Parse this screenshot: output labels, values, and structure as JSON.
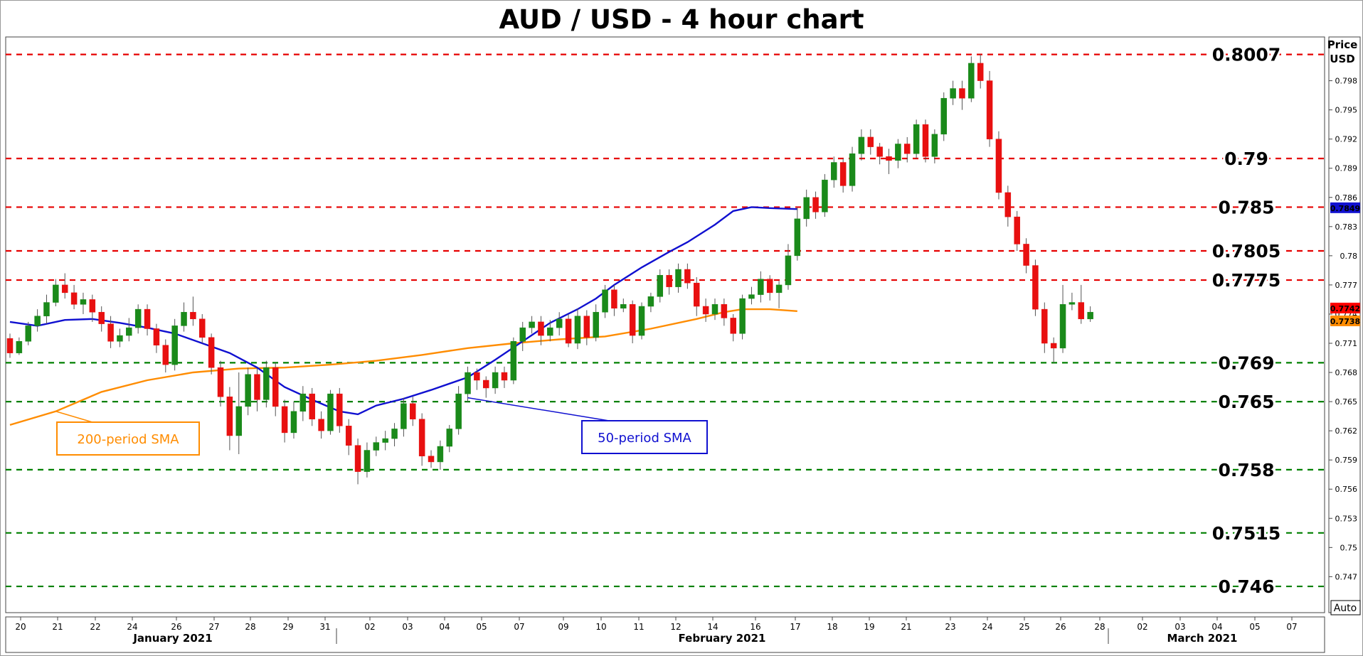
{
  "chart_data": {
    "type": "candlestick",
    "title": "AUD / USD - 4 hour chart",
    "y_axis_title": "Price\nUSD",
    "ylim": [
      0.7433,
      0.8025
    ],
    "y_ticks": [
      "0.798",
      "0.795",
      "0.792",
      "0.789",
      "0.786",
      "0.783",
      "0.78",
      "0.777",
      "0.774",
      "0.771",
      "0.768",
      "0.765",
      "0.762",
      "0.759",
      "0.756",
      "0.753",
      "0.75",
      "0.747"
    ],
    "x_tick_labels": [
      "20",
      "21",
      "22",
      "24",
      "26",
      "27",
      "28",
      "29",
      "31",
      "02",
      "03",
      "04",
      "05",
      "07",
      "09",
      "10",
      "11",
      "12",
      "14",
      "16",
      "17",
      "18",
      "19",
      "21",
      "23",
      "24",
      "25",
      "26",
      "28",
      "02",
      "03",
      "04",
      "05",
      "07"
    ],
    "month_labels": [
      "January 2021",
      "February 2021",
      "March 2021"
    ],
    "auto_label": "Auto",
    "horizontal_levels": [
      {
        "label": "0.8007",
        "value": 0.8007,
        "color": "#e60000"
      },
      {
        "label": "0.79",
        "value": 0.79,
        "color": "#e60000"
      },
      {
        "label": "0.785",
        "value": 0.785,
        "color": "#e60000"
      },
      {
        "label": "0.7805",
        "value": 0.7805,
        "color": "#e60000"
      },
      {
        "label": "0.7775",
        "value": 0.7775,
        "color": "#e60000"
      },
      {
        "label": "0.769",
        "value": 0.769,
        "color": "#008000"
      },
      {
        "label": "0.765",
        "value": 0.765,
        "color": "#008000"
      },
      {
        "label": "0.758",
        "value": 0.758,
        "color": "#008000"
      },
      {
        "label": "0.7515",
        "value": 0.7515,
        "color": "#008000"
      },
      {
        "label": "0.746",
        "value": 0.746,
        "color": "#008000"
      }
    ],
    "sma50": {
      "name": "50-period SMA",
      "color": "#1010d0",
      "points": [
        [
          0,
          0.7732
        ],
        [
          3,
          0.7728
        ],
        [
          6,
          0.7734
        ],
        [
          9,
          0.7735
        ],
        [
          12,
          0.7731
        ],
        [
          15,
          0.7726
        ],
        [
          18,
          0.772
        ],
        [
          21,
          0.771
        ],
        [
          24,
          0.77
        ],
        [
          27,
          0.7685
        ],
        [
          30,
          0.7665
        ],
        [
          33,
          0.7652
        ],
        [
          36,
          0.764
        ],
        [
          38,
          0.7637
        ],
        [
          40,
          0.7646
        ],
        [
          43,
          0.7653
        ],
        [
          46,
          0.7662
        ],
        [
          50,
          0.7675
        ],
        [
          53,
          0.7693
        ],
        [
          56,
          0.7712
        ],
        [
          59,
          0.7731
        ],
        [
          62,
          0.7745
        ],
        [
          64,
          0.7756
        ],
        [
          66,
          0.777
        ],
        [
          69,
          0.7788
        ],
        [
          72,
          0.7804
        ],
        [
          74,
          0.7814
        ],
        [
          77,
          0.7832
        ],
        [
          79,
          0.7846
        ],
        [
          81,
          0.785
        ],
        [
          83,
          0.7849
        ],
        [
          86,
          0.7848
        ]
      ]
    },
    "sma200": {
      "name": "200-period SMA",
      "color": "#ff8c00",
      "points": [
        [
          0,
          0.7626
        ],
        [
          5,
          0.764
        ],
        [
          10,
          0.766
        ],
        [
          15,
          0.7672
        ],
        [
          20,
          0.768
        ],
        [
          25,
          0.7684
        ],
        [
          30,
          0.7685
        ],
        [
          35,
          0.7688
        ],
        [
          40,
          0.7692
        ],
        [
          45,
          0.7698
        ],
        [
          50,
          0.7705
        ],
        [
          55,
          0.771
        ],
        [
          60,
          0.7714
        ],
        [
          65,
          0.7717
        ],
        [
          70,
          0.7725
        ],
        [
          75,
          0.7735
        ],
        [
          78,
          0.7742
        ],
        [
          80,
          0.7745
        ],
        [
          83,
          0.7745
        ],
        [
          86,
          0.7743
        ]
      ]
    },
    "current_prices": [
      {
        "label": "0.7742",
        "color": "#ff0000"
      },
      {
        "label": "0.7738",
        "color": "#ff8c00"
      },
      {
        "label": "0.7849",
        "color": "#1010d0"
      }
    ],
    "candles": [
      [
        0.7715,
        0.77,
        0.772,
        0.7695
      ],
      [
        0.77,
        0.7712,
        0.7716,
        0.7698
      ],
      [
        0.7712,
        0.7728,
        0.7732,
        0.7708
      ],
      [
        0.7728,
        0.7738,
        0.7745,
        0.7722
      ],
      [
        0.7738,
        0.7752,
        0.776,
        0.773
      ],
      [
        0.7752,
        0.777,
        0.7776,
        0.7748
      ],
      [
        0.777,
        0.7762,
        0.7782,
        0.7756
      ],
      [
        0.7762,
        0.775,
        0.777,
        0.7745
      ],
      [
        0.775,
        0.7755,
        0.7762,
        0.774
      ],
      [
        0.7755,
        0.7742,
        0.776,
        0.7732
      ],
      [
        0.7742,
        0.773,
        0.7748,
        0.7722
      ],
      [
        0.773,
        0.7712,
        0.7738,
        0.7705
      ],
      [
        0.7712,
        0.7718,
        0.7725,
        0.7706
      ],
      [
        0.7718,
        0.7726,
        0.7736,
        0.7712
      ],
      [
        0.7726,
        0.7745,
        0.775,
        0.772
      ],
      [
        0.7745,
        0.7725,
        0.775,
        0.7718
      ],
      [
        0.7725,
        0.7708,
        0.773,
        0.77
      ],
      [
        0.7708,
        0.7688,
        0.7714,
        0.768
      ],
      [
        0.7688,
        0.7728,
        0.7735,
        0.7682
      ],
      [
        0.7728,
        0.7742,
        0.7752,
        0.7722
      ],
      [
        0.7742,
        0.7735,
        0.7758,
        0.7728
      ],
      [
        0.7735,
        0.7716,
        0.774,
        0.771
      ],
      [
        0.7716,
        0.7685,
        0.772,
        0.7678
      ],
      [
        0.7685,
        0.7655,
        0.7692,
        0.7645
      ],
      [
        0.7655,
        0.7615,
        0.7665,
        0.76
      ],
      [
        0.7615,
        0.7645,
        0.768,
        0.7596
      ],
      [
        0.7645,
        0.7678,
        0.7685,
        0.7636
      ],
      [
        0.7678,
        0.7652,
        0.7684,
        0.764
      ],
      [
        0.7652,
        0.7685,
        0.7692,
        0.7644
      ],
      [
        0.7685,
        0.7645,
        0.769,
        0.7635
      ],
      [
        0.7645,
        0.7618,
        0.7652,
        0.7608
      ],
      [
        0.7618,
        0.764,
        0.765,
        0.7612
      ],
      [
        0.764,
        0.7658,
        0.7666,
        0.763
      ],
      [
        0.7658,
        0.7632,
        0.7664,
        0.7625
      ],
      [
        0.7632,
        0.762,
        0.764,
        0.7612
      ],
      [
        0.762,
        0.7658,
        0.7662,
        0.7616
      ],
      [
        0.7658,
        0.7625,
        0.7664,
        0.7618
      ],
      [
        0.7625,
        0.7605,
        0.7632,
        0.7595
      ],
      [
        0.7605,
        0.7578,
        0.7612,
        0.7565
      ],
      [
        0.7578,
        0.76,
        0.7608,
        0.7572
      ],
      [
        0.76,
        0.7608,
        0.7614,
        0.7594
      ],
      [
        0.7608,
        0.7612,
        0.762,
        0.76
      ],
      [
        0.7612,
        0.7622,
        0.7628,
        0.7604
      ],
      [
        0.7622,
        0.7648,
        0.7654,
        0.7614
      ],
      [
        0.7648,
        0.7632,
        0.7655,
        0.7625
      ],
      [
        0.7632,
        0.7594,
        0.7638,
        0.7584
      ],
      [
        0.7594,
        0.7588,
        0.76,
        0.7582
      ],
      [
        0.7588,
        0.7604,
        0.761,
        0.758
      ],
      [
        0.7604,
        0.7622,
        0.7626,
        0.7598
      ],
      [
        0.7622,
        0.7658,
        0.7666,
        0.7616
      ],
      [
        0.7658,
        0.768,
        0.7686,
        0.765
      ],
      [
        0.768,
        0.7672,
        0.7684,
        0.7662
      ],
      [
        0.7672,
        0.7664,
        0.7676,
        0.7654
      ],
      [
        0.7664,
        0.768,
        0.7686,
        0.7658
      ],
      [
        0.768,
        0.7672,
        0.7686,
        0.7664
      ],
      [
        0.7672,
        0.7712,
        0.7716,
        0.7668
      ],
      [
        0.7712,
        0.7726,
        0.7732,
        0.7702
      ],
      [
        0.7726,
        0.7732,
        0.7738,
        0.772
      ],
      [
        0.7732,
        0.7718,
        0.7738,
        0.7708
      ],
      [
        0.7718,
        0.7726,
        0.7734,
        0.7712
      ],
      [
        0.7726,
        0.7735,
        0.7742,
        0.7718
      ],
      [
        0.7735,
        0.771,
        0.774,
        0.7706
      ],
      [
        0.771,
        0.7738,
        0.7746,
        0.7704
      ],
      [
        0.7738,
        0.7716,
        0.7744,
        0.7708
      ],
      [
        0.7716,
        0.7742,
        0.775,
        0.7712
      ],
      [
        0.7742,
        0.7765,
        0.777,
        0.7736
      ],
      [
        0.7765,
        0.7746,
        0.777,
        0.7738
      ],
      [
        0.7746,
        0.775,
        0.7756,
        0.7742
      ],
      [
        0.775,
        0.7718,
        0.7754,
        0.771
      ],
      [
        0.7718,
        0.7748,
        0.7752,
        0.7714
      ],
      [
        0.7748,
        0.7758,
        0.7762,
        0.7742
      ],
      [
        0.7758,
        0.778,
        0.7786,
        0.7752
      ],
      [
        0.778,
        0.7768,
        0.7786,
        0.776
      ],
      [
        0.7768,
        0.7786,
        0.7792,
        0.7762
      ],
      [
        0.7786,
        0.7772,
        0.7792,
        0.7766
      ],
      [
        0.7772,
        0.7748,
        0.7778,
        0.7738
      ],
      [
        0.7748,
        0.774,
        0.7756,
        0.7732
      ],
      [
        0.774,
        0.775,
        0.7756,
        0.7734
      ],
      [
        0.775,
        0.7736,
        0.7756,
        0.7728
      ],
      [
        0.7736,
        0.772,
        0.774,
        0.7712
      ],
      [
        0.772,
        0.7756,
        0.776,
        0.7714
      ],
      [
        0.7756,
        0.776,
        0.7768,
        0.775
      ],
      [
        0.776,
        0.7776,
        0.7784,
        0.7752
      ],
      [
        0.7776,
        0.7762,
        0.778,
        0.7754
      ],
      [
        0.7762,
        0.777,
        0.7774,
        0.7746
      ],
      [
        0.777,
        0.78,
        0.7812,
        0.7765
      ],
      [
        0.78,
        0.7838,
        0.785,
        0.7795
      ],
      [
        0.7838,
        0.786,
        0.7868,
        0.783
      ],
      [
        0.786,
        0.7845,
        0.7866,
        0.7838
      ],
      [
        0.7845,
        0.7878,
        0.7884,
        0.784
      ],
      [
        0.7878,
        0.7896,
        0.7902,
        0.787
      ],
      [
        0.7896,
        0.7872,
        0.79,
        0.7865
      ],
      [
        0.7872,
        0.7905,
        0.7912,
        0.7866
      ],
      [
        0.7905,
        0.7922,
        0.793,
        0.7898
      ],
      [
        0.7922,
        0.7912,
        0.793,
        0.7904
      ],
      [
        0.7912,
        0.7902,
        0.7916,
        0.7894
      ],
      [
        0.7902,
        0.7898,
        0.791,
        0.7884
      ],
      [
        0.7898,
        0.7915,
        0.792,
        0.789
      ],
      [
        0.7915,
        0.7905,
        0.7922,
        0.7896
      ],
      [
        0.7905,
        0.7935,
        0.794,
        0.79
      ],
      [
        0.7935,
        0.7902,
        0.794,
        0.7896
      ],
      [
        0.7902,
        0.7925,
        0.793,
        0.7895
      ],
      [
        0.7925,
        0.7962,
        0.7968,
        0.7918
      ],
      [
        0.7962,
        0.7972,
        0.798,
        0.7955
      ],
      [
        0.7972,
        0.7962,
        0.798,
        0.795
      ],
      [
        0.7962,
        0.7998,
        0.8005,
        0.7958
      ],
      [
        0.7998,
        0.798,
        0.8007,
        0.7972
      ],
      [
        0.798,
        0.792,
        0.799,
        0.7912
      ],
      [
        0.792,
        0.7865,
        0.7928,
        0.7858
      ],
      [
        0.7865,
        0.784,
        0.7872,
        0.783
      ],
      [
        0.784,
        0.7812,
        0.7846,
        0.7805
      ],
      [
        0.7812,
        0.779,
        0.7818,
        0.7782
      ],
      [
        0.779,
        0.7745,
        0.7796,
        0.7738
      ],
      [
        0.7745,
        0.771,
        0.7752,
        0.77
      ],
      [
        0.771,
        0.7705,
        0.7716,
        0.769
      ],
      [
        0.7705,
        0.775,
        0.777,
        0.77
      ],
      [
        0.775,
        0.7752,
        0.7762,
        0.7744
      ],
      [
        0.7752,
        0.7735,
        0.777,
        0.773
      ],
      [
        0.7735,
        0.7742,
        0.7748,
        0.7732
      ]
    ]
  }
}
